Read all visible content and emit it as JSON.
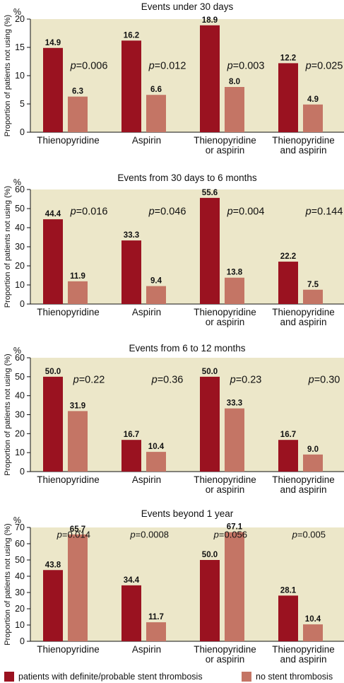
{
  "colors": {
    "plot_bg": "#ece7c9",
    "series_a": "#9a1220",
    "series_b": "#c47565"
  },
  "legend": {
    "series_a": "patients with definite/probable stent thrombosis",
    "series_b": "no stent thrombosis"
  },
  "chart_data": [
    {
      "type": "bar",
      "title": "Events under 30 days",
      "ylabel": "Proportion of patients not using (%)",
      "yunit": "%",
      "ylim": [
        0,
        20
      ],
      "yticks": [
        0,
        5,
        10,
        15,
        20
      ],
      "categories": [
        "Thienopyridine",
        "Aspirin",
        "Thienopyridine or aspirin",
        "Thienopyridine and aspirin"
      ],
      "category_lines": [
        [
          "Thienopyridine"
        ],
        [
          "Aspirin"
        ],
        [
          "Thienopyridine",
          "or aspirin"
        ],
        [
          "Thienopyridine",
          "and aspirin"
        ]
      ],
      "series": [
        {
          "name": "patients with definite/probable stent thrombosis",
          "values": [
            14.9,
            16.2,
            18.9,
            12.2
          ],
          "labels": [
            "14.9",
            "16.2",
            "18.9",
            "12.2"
          ]
        },
        {
          "name": "no stent thrombosis",
          "values": [
            6.3,
            6.6,
            8.0,
            4.9
          ],
          "labels": [
            "6.3",
            "6.6",
            "8.0",
            "4.9"
          ]
        }
      ],
      "pvalues": [
        "0.006",
        "0.012",
        "0.003",
        "0.025"
      ],
      "p_position": "mid"
    },
    {
      "type": "bar",
      "title": "Events from 30 days to 6 months",
      "ylabel": "Proportion of patients not using (%)",
      "yunit": "%",
      "ylim": [
        0,
        60
      ],
      "yticks": [
        0,
        10,
        20,
        30,
        40,
        50,
        60
      ],
      "categories": [
        "Thienopyridine",
        "Aspirin",
        "Thienopyridine or aspirin",
        "Thienopyridine and aspirin"
      ],
      "category_lines": [
        [
          "Thienopyridine"
        ],
        [
          "Aspirin"
        ],
        [
          "Thienopyridine",
          "or aspirin"
        ],
        [
          "Thienopyridine",
          "and aspirin"
        ]
      ],
      "series": [
        {
          "name": "patients with definite/probable stent thrombosis",
          "values": [
            44.4,
            33.3,
            55.6,
            22.2
          ],
          "labels": [
            "44.4",
            "33.3",
            "55.6",
            "22.2"
          ]
        },
        {
          "name": "no stent thrombosis",
          "values": [
            11.9,
            9.4,
            13.8,
            7.5
          ],
          "labels": [
            "11.9",
            "9.4",
            "13.8",
            "7.5"
          ]
        }
      ],
      "pvalues": [
        "0.016",
        "0.046",
        "0.004",
        "0.144"
      ],
      "p_position": "high"
    },
    {
      "type": "bar",
      "title": "Events from 6 to 12 months",
      "ylabel": "Proportion of patients not using (%)",
      "yunit": "%",
      "ylim": [
        0,
        60
      ],
      "yticks": [
        0,
        10,
        20,
        30,
        40,
        50,
        60
      ],
      "categories": [
        "Thienopyridine",
        "Aspirin",
        "Thienopyridine or aspirin",
        "Thienopyridine and aspirin"
      ],
      "category_lines": [
        [
          "Thienopyridine"
        ],
        [
          "Aspirin"
        ],
        [
          "Thienopyridine",
          "or aspirin"
        ],
        [
          "Thienopyridine",
          "and aspirin"
        ]
      ],
      "series": [
        {
          "name": "patients with definite/probable stent thrombosis",
          "values": [
            50.0,
            16.7,
            50.0,
            16.7
          ],
          "labels": [
            "50.0",
            "16.7",
            "50.0",
            "16.7"
          ]
        },
        {
          "name": "no stent thrombosis",
          "values": [
            31.9,
            10.4,
            33.3,
            9.0
          ],
          "labels": [
            "31.9",
            "10.4",
            "33.3",
            "9.0"
          ]
        }
      ],
      "pvalues": [
        "0.22",
        "0.36",
        "0.23",
        "0.30"
      ],
      "p_position": "high"
    },
    {
      "type": "bar",
      "title": "Events beyond 1 year",
      "ylabel": "Proportion of patients not using (%)",
      "yunit": "%",
      "ylim": [
        0,
        70
      ],
      "yticks": [
        0,
        10,
        20,
        30,
        40,
        50,
        60,
        70
      ],
      "categories": [
        "Thienopyridine",
        "Aspirin",
        "Thienopyridine or aspirin",
        "Thienopyridine and aspirin"
      ],
      "category_lines": [
        [
          "Thienopyridine"
        ],
        [
          "Aspirin"
        ],
        [
          "Thienopyridine",
          "or aspirin"
        ],
        [
          "Thienopyridine",
          "and aspirin"
        ]
      ],
      "series": [
        {
          "name": "patients with definite/probable stent thrombosis",
          "values": [
            43.8,
            34.4,
            50.0,
            28.1
          ],
          "labels": [
            "43.8",
            "34.4",
            "50.0",
            "28.1"
          ]
        },
        {
          "name": "no stent thrombosis",
          "values": [
            65.7,
            11.7,
            67.1,
            10.4
          ],
          "labels": [
            "65.7",
            "11.7",
            "67.1",
            "10.4"
          ]
        }
      ],
      "pvalues": [
        "0.014",
        "0.0008",
        "0.056",
        "0.005"
      ],
      "p_position": "high_left"
    }
  ]
}
